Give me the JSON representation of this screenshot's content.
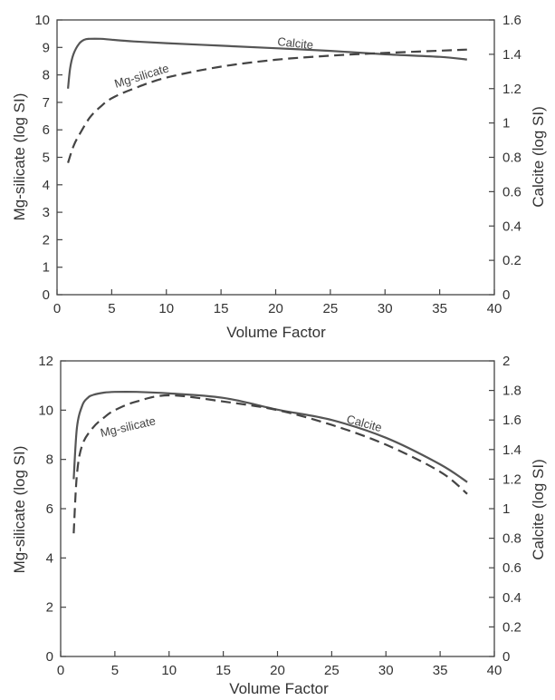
{
  "chart_data": [
    {
      "type": "line",
      "xlabel": "Volume Factor",
      "ylabel_left": "Mg-silicate (log SI)",
      "ylabel_right": "Calcite (log SI)",
      "xlim": [
        0,
        40
      ],
      "ylim_left": [
        0,
        10
      ],
      "ylim_right": [
        0,
        1.6
      ],
      "x_ticks": [
        "0",
        "5",
        "10",
        "15",
        "20",
        "25",
        "30",
        "35",
        "40"
      ],
      "y_left_ticks": [
        "0",
        "1",
        "2",
        "3",
        "4",
        "5",
        "6",
        "7",
        "8",
        "9",
        "10"
      ],
      "y_right_ticks": [
        "0",
        "0.2",
        "0.4",
        "0.6",
        "0.8",
        "1",
        "1.2",
        "1.4",
        "1.6"
      ],
      "series": [
        {
          "name": "Calcite",
          "axis": "right",
          "style": "solid",
          "x": [
            1,
            1.2,
            1.5,
            2,
            2.5,
            3,
            4,
            5,
            7,
            10,
            15,
            20,
            25,
            30,
            35,
            37.5
          ],
          "y": [
            1.2,
            1.32,
            1.4,
            1.46,
            1.485,
            1.49,
            1.49,
            1.485,
            1.475,
            1.465,
            1.45,
            1.435,
            1.42,
            1.4,
            1.385,
            1.37
          ]
        },
        {
          "name": "Mg-silicate",
          "axis": "left",
          "style": "dashed",
          "x": [
            1,
            1.5,
            2,
            3,
            4,
            5,
            7,
            10,
            15,
            20,
            25,
            30,
            35,
            37.5
          ],
          "y": [
            4.8,
            5.4,
            5.8,
            6.45,
            6.85,
            7.15,
            7.5,
            7.9,
            8.3,
            8.55,
            8.7,
            8.8,
            8.88,
            8.92
          ]
        }
      ]
    },
    {
      "type": "line",
      "xlabel": "Volume Factor",
      "ylabel_left": "Mg-silicate  (log SI)",
      "ylabel_right": "Calcite (log SI)",
      "xlim": [
        0,
        40
      ],
      "ylim_left": [
        0,
        12
      ],
      "ylim_right": [
        0,
        2
      ],
      "x_ticks": [
        "0",
        "5",
        "10",
        "15",
        "20",
        "25",
        "30",
        "35",
        "40"
      ],
      "y_left_ticks": [
        "0",
        "2",
        "4",
        "6",
        "8",
        "10",
        "12"
      ],
      "y_right_ticks": [
        "0",
        "0.2",
        "0.4",
        "0.6",
        "0.8",
        "1",
        "1.2",
        "1.4",
        "1.6",
        "1.8",
        "2"
      ],
      "series": [
        {
          "name": "Calcite",
          "axis": "right",
          "style": "solid",
          "x": [
            1.2,
            1.5,
            2,
            2.5,
            3,
            4,
            5,
            7,
            10,
            15,
            20,
            25,
            30,
            35,
            37.5
          ],
          "y": [
            1.2,
            1.55,
            1.7,
            1.75,
            1.77,
            1.785,
            1.79,
            1.79,
            1.78,
            1.75,
            1.67,
            1.6,
            1.48,
            1.3,
            1.18
          ]
        },
        {
          "name": "Mg-silicate",
          "axis": "left",
          "style": "dashed",
          "x": [
            1.2,
            1.5,
            2,
            3,
            4,
            5,
            7,
            10,
            15,
            20,
            25,
            30,
            35,
            37.5
          ],
          "y": [
            5.0,
            7.4,
            8.6,
            9.3,
            9.7,
            10.0,
            10.35,
            10.6,
            10.35,
            10.0,
            9.4,
            8.6,
            7.5,
            6.6
          ]
        }
      ]
    }
  ]
}
